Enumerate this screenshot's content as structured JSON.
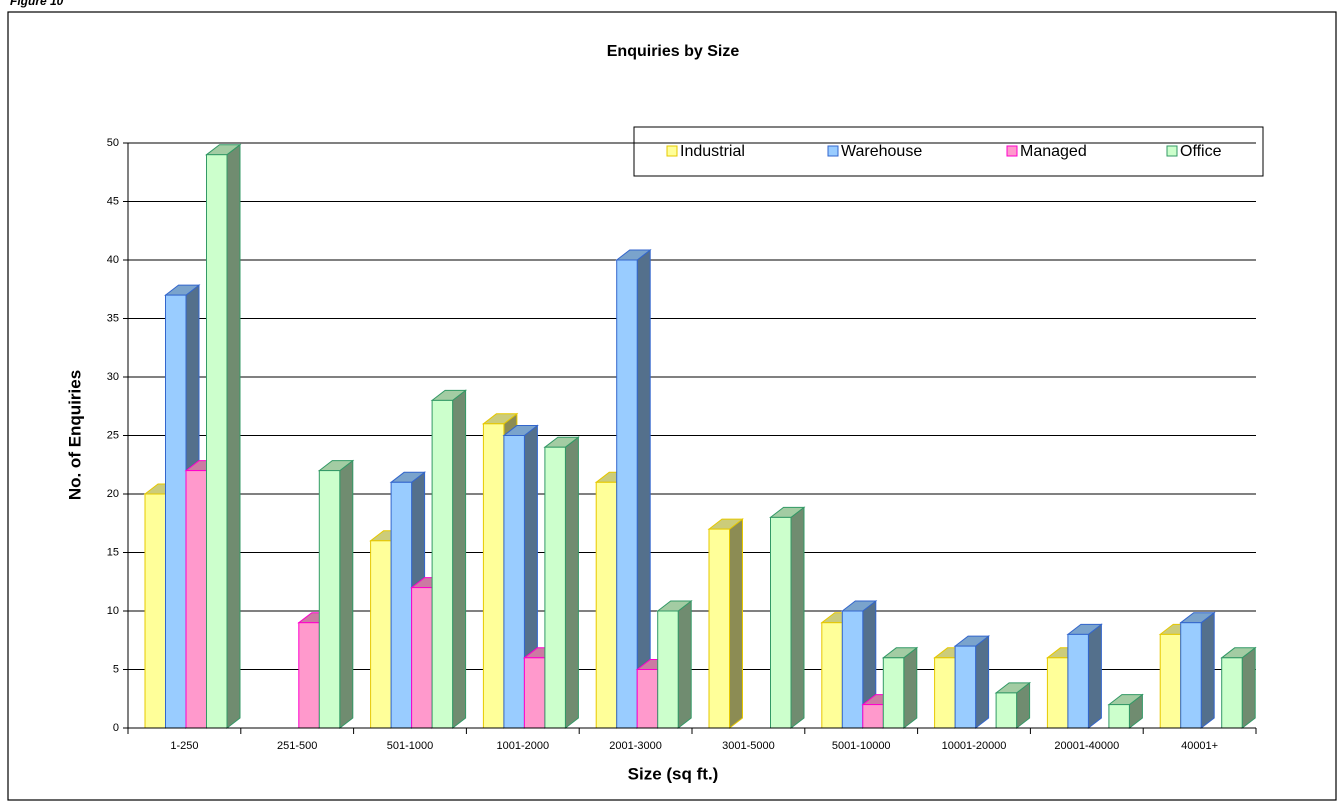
{
  "figure_label": "Figure 10",
  "chart_data": {
    "type": "bar3d",
    "title": "Enquiries by Size",
    "x_label": "Size (sq ft.)",
    "y_label": "No. of Enquiries",
    "categories": [
      "1-250",
      "251-500",
      "501-1000",
      "1001-2000",
      "2001-3000",
      "3001-5000",
      "5001-10000",
      "10001-20000",
      "20001-40000",
      "40001+"
    ],
    "series": [
      {
        "name": "Industrial",
        "color": "#ffff99",
        "edge": "#e6c800",
        "values": [
          20,
          null,
          16,
          26,
          21,
          17,
          9,
          6,
          6,
          8
        ]
      },
      {
        "name": "Warehouse",
        "color": "#99ccff",
        "edge": "#3366cc",
        "values": [
          37,
          null,
          21,
          25,
          40,
          null,
          10,
          7,
          8,
          9
        ]
      },
      {
        "name": "Managed",
        "color": "#ff99cc",
        "edge": "#ff00cc",
        "values": [
          22,
          9,
          12,
          6,
          5,
          null,
          2,
          null,
          null,
          null
        ]
      },
      {
        "name": "Office",
        "color": "#ccffcc",
        "edge": "#339966",
        "values": [
          49,
          22,
          28,
          24,
          10,
          18,
          6,
          3,
          2,
          6
        ]
      }
    ],
    "ylim": [
      0,
      50
    ],
    "yticks": [
      0,
      5,
      10,
      15,
      20,
      25,
      30,
      35,
      40,
      45,
      50
    ],
    "grid": true,
    "legend": "top-right"
  }
}
